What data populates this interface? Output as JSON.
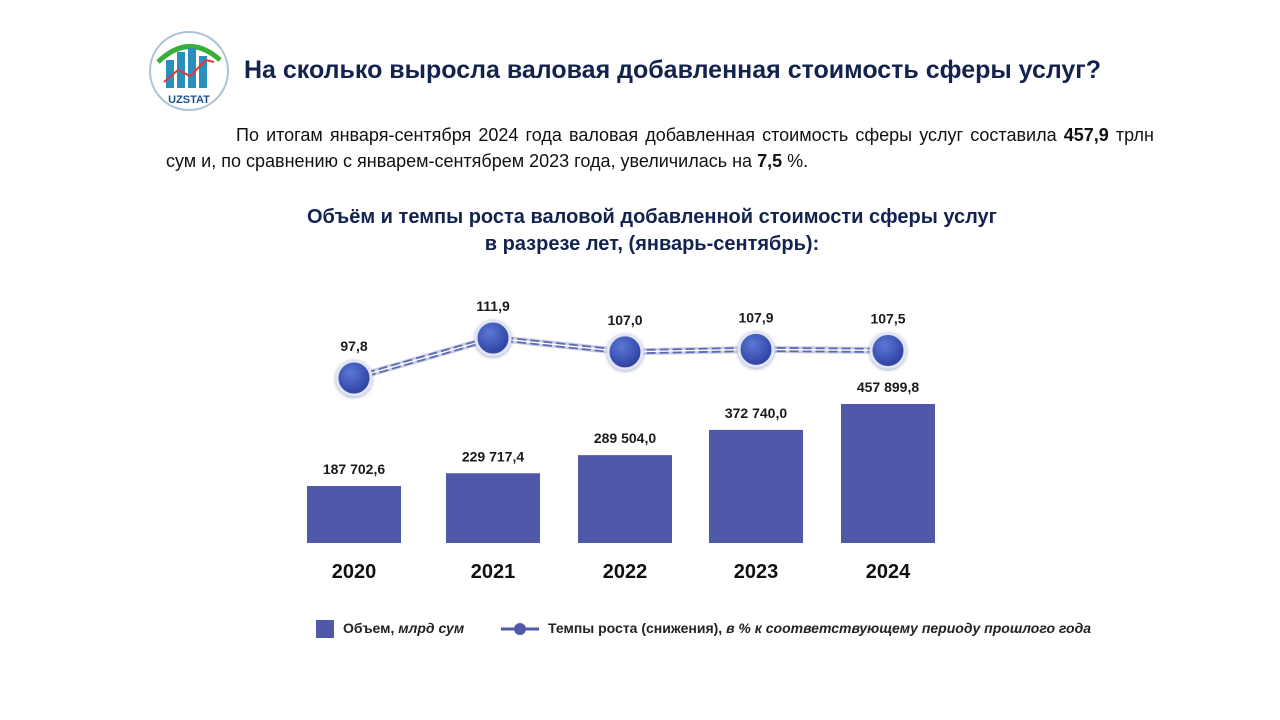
{
  "logo": {
    "text": "UZSTAT"
  },
  "title": "На сколько выросла валовая добавленная стоимость сферы услуг?",
  "paragraph": {
    "part1": "По итогам января-сентября 2024 года валовая добавленная стоимость сферы услуг составила ",
    "value1": "457,9",
    "part2": " трлн сум и, по сравнению с январем-сентябрем 2023 года, увеличилась на ",
    "value2": "7,5",
    "part3": " %."
  },
  "chart_data": {
    "type": "bar+line",
    "title_line1": "Объём и темпы роста валовой добавленной стоимости сферы услуг",
    "title_line2": "в разрезе лет, (январь-сентябрь):",
    "categories": [
      "2020",
      "2021",
      "2022",
      "2023",
      "2024"
    ],
    "series": [
      {
        "name": "Объем",
        "unit": "млрд сум",
        "type": "bar",
        "values": [
          187702.6,
          229717.4,
          289504.0,
          372740.0,
          457899.8
        ],
        "labels": [
          "187 702,6",
          "229 717,4",
          "289 504,0",
          "372 740,0",
          "457 899,8"
        ]
      },
      {
        "name": "Темпы роста (снижения)",
        "unit": "в % к соответствующему периоду прошлого года",
        "type": "line",
        "values": [
          97.8,
          111.9,
          107.0,
          107.9,
          107.5
        ],
        "labels": [
          "97,8",
          "111,9",
          "107,0",
          "107,9",
          "107,5"
        ]
      }
    ],
    "colors": {
      "bar": "#4f58a9",
      "marker": "#3a4fb0",
      "line": "#5d6ab3"
    }
  },
  "legend": {
    "bar_label": "Объем, ",
    "bar_unit": "млрд сум",
    "line_label": "Темпы роста (снижения), ",
    "line_unit": "в % к соответствующему периоду прошлого года"
  }
}
